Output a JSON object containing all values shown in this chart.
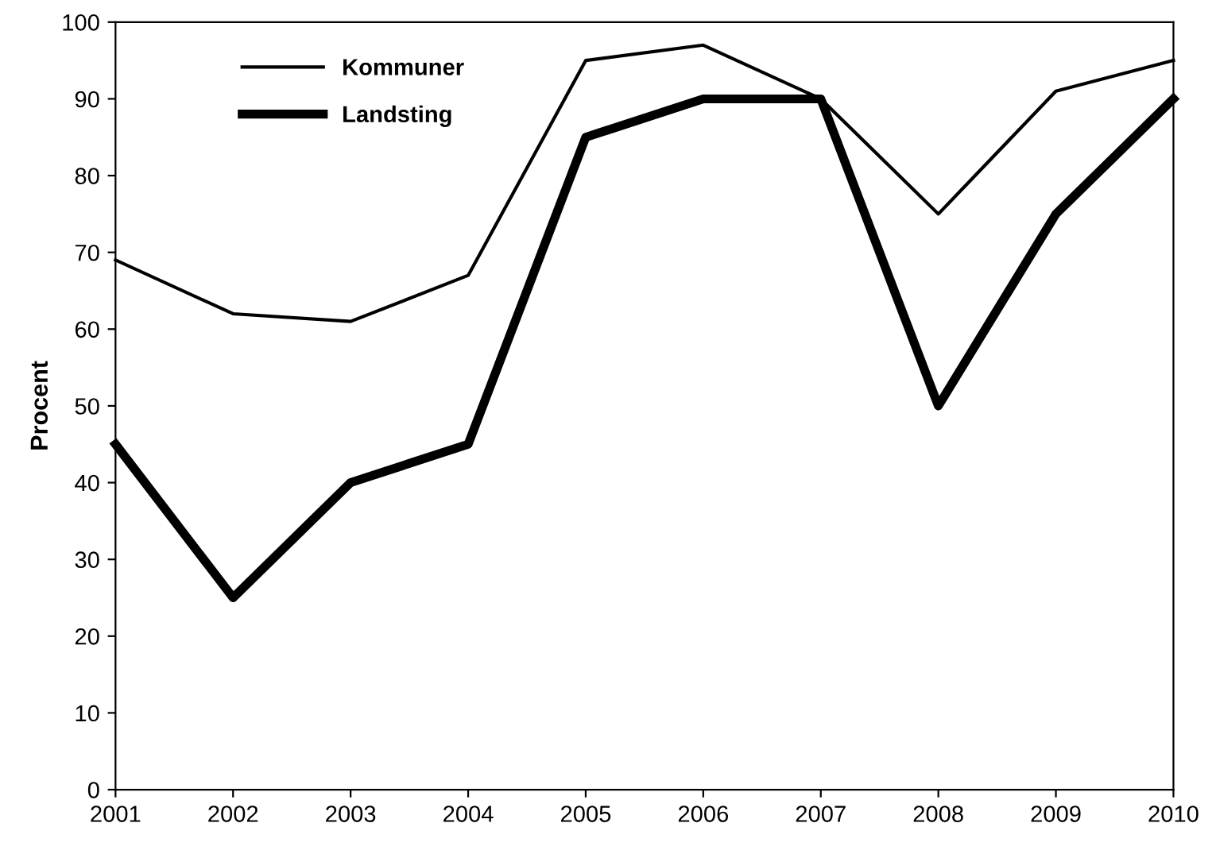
{
  "chart_data": {
    "type": "line",
    "ylabel": "Procent",
    "x": [
      2001,
      2002,
      2003,
      2004,
      2005,
      2006,
      2007,
      2008,
      2009,
      2010
    ],
    "series": [
      {
        "name": "Kommuner",
        "color": "#000000",
        "values": [
          69,
          62,
          61,
          67,
          95,
          97,
          90,
          75,
          91,
          95
        ]
      },
      {
        "name": "Landsting",
        "color": "#000000",
        "values": [
          45,
          25,
          40,
          45,
          85,
          90,
          90,
          50,
          75,
          90
        ]
      }
    ],
    "xlim": [
      2001,
      2010
    ],
    "xticks": [
      2001,
      2002,
      2003,
      2004,
      2005,
      2006,
      2007,
      2008,
      2009,
      2010
    ],
    "ylim": [
      0,
      100
    ],
    "yticks": [
      0,
      10,
      20,
      30,
      40,
      50,
      60,
      70,
      80,
      90,
      100
    ],
    "grid": false,
    "legend": "top left",
    "marker": "none",
    "line_style": "solid"
  }
}
